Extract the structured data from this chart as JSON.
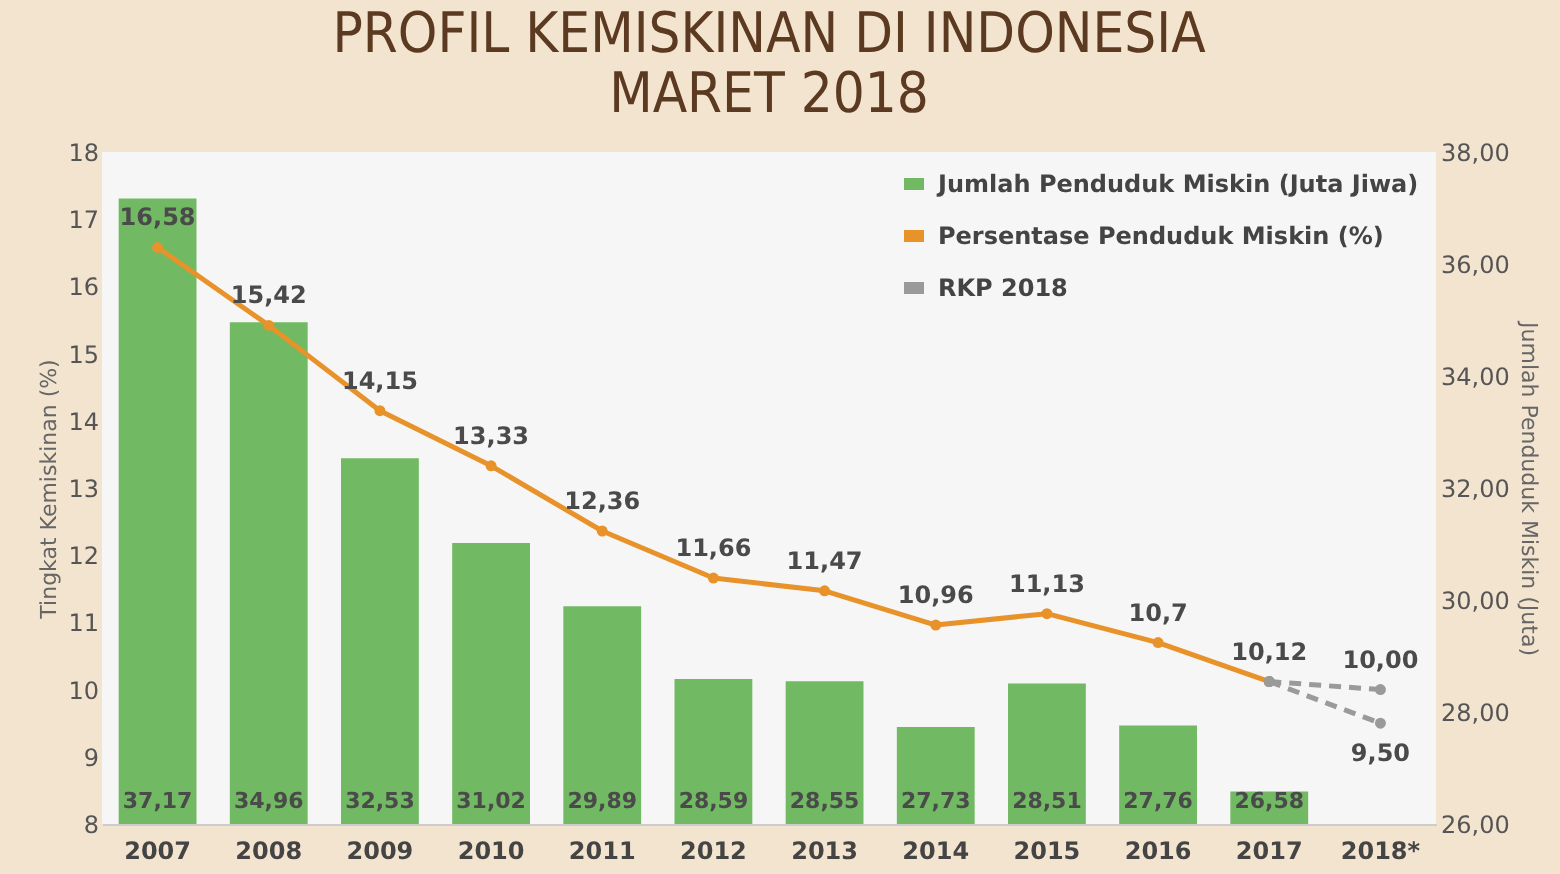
{
  "chart_data": {
    "type": "bar",
    "title": "PROFIL KEMISKINAN DI INDONESIA\nMARET 2018",
    "ylabel": "Tingkat Kemiskinan (%)",
    "y2label": "Jumlah Penduduk Miskin (Juta)",
    "categories": [
      "2007",
      "2008",
      "2009",
      "2010",
      "2011",
      "2012",
      "2013",
      "2014",
      "2015",
      "2016",
      "2017",
      "2018*"
    ],
    "ylim": [
      8,
      18
    ],
    "yticks": [
      8,
      9,
      10,
      11,
      12,
      13,
      14,
      15,
      16,
      17,
      18
    ],
    "y2lim": [
      26,
      38
    ],
    "y2ticks": [
      {
        "value": 26,
        "label": "26,00"
      },
      {
        "value": 28,
        "label": "28,00"
      },
      {
        "value": 30,
        "label": "30,00"
      },
      {
        "value": 32,
        "label": "32,00"
      },
      {
        "value": 34,
        "label": "34,00"
      },
      {
        "value": 36,
        "label": "36,00"
      },
      {
        "value": 38,
        "label": "38,00"
      }
    ],
    "legend": "top right",
    "marker": "circle",
    "series": [
      {
        "name": "Jumlah Penduduk Miskin (Juta Jiwa)",
        "axis": "y2",
        "color": "#72b963",
        "values": [
          37.17,
          34.96,
          32.53,
          31.02,
          29.89,
          28.59,
          28.55,
          27.73,
          28.51,
          27.76,
          26.58,
          null
        ],
        "value_labels": [
          "37,17",
          "34,96",
          "32,53",
          "31,02",
          "29,89",
          "28,59",
          "28,55",
          "27,73",
          "28,51",
          "27,76",
          "26,58",
          null
        ]
      },
      {
        "name": "Persentase Penduduk Miskin (%)",
        "type": "line",
        "color": "#e8922a",
        "line_style": "solid",
        "values": [
          16.58,
          15.42,
          14.15,
          13.33,
          12.36,
          11.66,
          11.47,
          10.96,
          11.13,
          10.7,
          10.12,
          null
        ],
        "value_labels": [
          "16,58",
          "15,42",
          "14,15",
          "13,33",
          "12,36",
          "11,66",
          "11,47",
          "10,96",
          "11,13",
          "10,7",
          "10,12",
          null
        ]
      },
      {
        "name": "RKP 2018",
        "type": "line",
        "color": "#9a9a9a",
        "line_style": "dashed",
        "values": [
          null,
          null,
          null,
          null,
          null,
          null,
          null,
          null,
          null,
          null,
          10.12,
          10.0
        ],
        "value_labels": [
          null,
          null,
          null,
          null,
          null,
          null,
          null,
          null,
          null,
          null,
          null,
          "10,00"
        ]
      },
      {
        "type": "line",
        "color": "#9a9a9a",
        "line_style": "dashed",
        "values": [
          null,
          null,
          null,
          null,
          null,
          null,
          null,
          null,
          null,
          null,
          10.12,
          9.5
        ],
        "value_labels": [
          null,
          null,
          null,
          null,
          null,
          null,
          null,
          null,
          null,
          null,
          null,
          "9,50"
        ]
      }
    ]
  }
}
